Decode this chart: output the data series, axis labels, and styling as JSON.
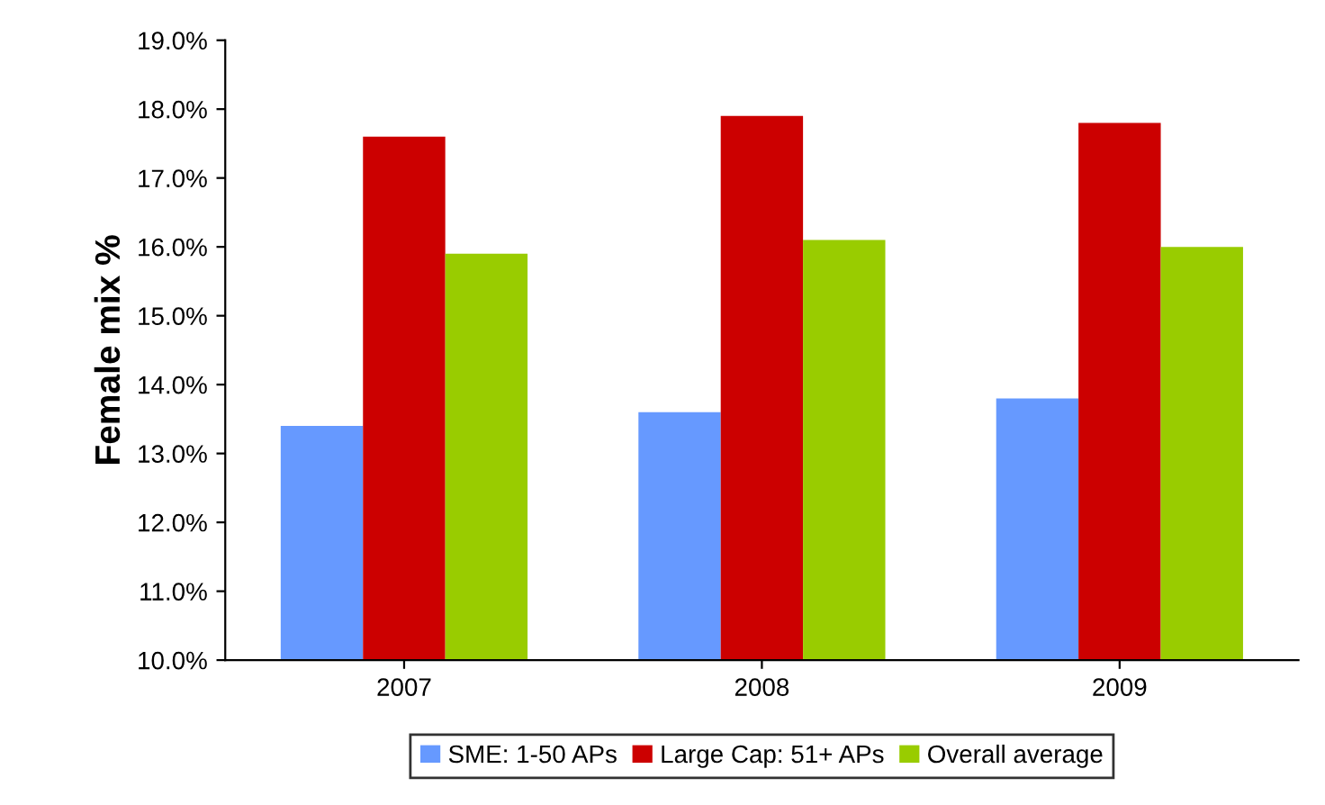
{
  "chart_data": {
    "type": "bar",
    "ylabel": "Female mix %",
    "categories": [
      "2007",
      "2008",
      "2009"
    ],
    "series": [
      {
        "name": "SME: 1-50 APs",
        "color": "#6699ff",
        "values": [
          13.4,
          13.6,
          13.8
        ]
      },
      {
        "name": "Large Cap: 51+ APs",
        "color": "#cc0000",
        "values": [
          17.6,
          17.9,
          17.8
        ]
      },
      {
        "name": "Overall average",
        "color": "#99cc00",
        "values": [
          15.9,
          16.1,
          16.0
        ]
      }
    ],
    "ylim": [
      10,
      19
    ],
    "yticks": [
      {
        "value": 10,
        "label": "10.0%"
      },
      {
        "value": 11,
        "label": "11.0%"
      },
      {
        "value": 12,
        "label": "12.0%"
      },
      {
        "value": 13,
        "label": "13.0%"
      },
      {
        "value": 14,
        "label": "14.0%"
      },
      {
        "value": 15,
        "label": "15.0%"
      },
      {
        "value": 16,
        "label": "16.0%"
      },
      {
        "value": 17,
        "label": "17.0%"
      },
      {
        "value": 18,
        "label": "18.0%"
      },
      {
        "value": 19,
        "label": "19.0%"
      }
    ],
    "grid": false,
    "legend": "bottom"
  }
}
